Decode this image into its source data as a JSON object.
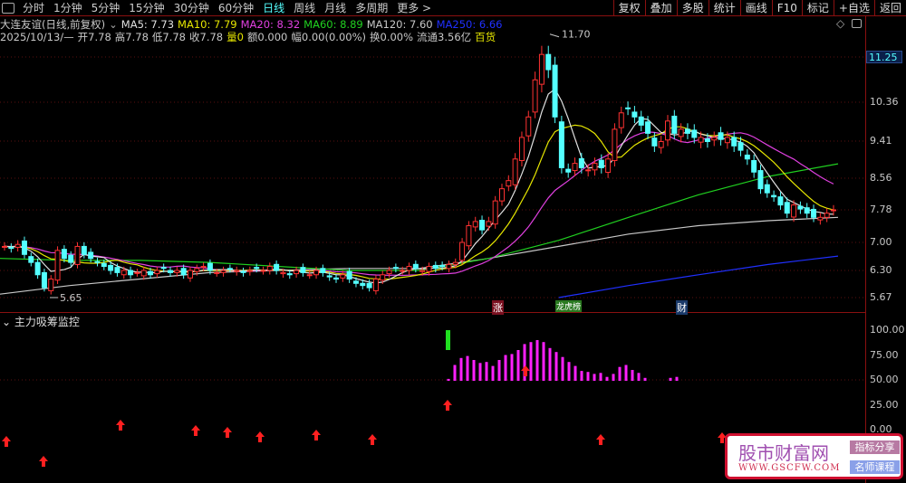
{
  "toolbar": {
    "periods": [
      "分时",
      "1分钟",
      "5分钟",
      "15分钟",
      "30分钟",
      "60分钟",
      "日线",
      "周线",
      "月线",
      "多周期",
      "更多 >"
    ],
    "active": "日线",
    "right_buttons": [
      "复权",
      "叠加",
      "多股",
      "统计",
      "画线",
      "F10",
      "标记",
      "+自选",
      "返回"
    ]
  },
  "stock": {
    "title": "大连友谊(日线,前复权)",
    "ma": [
      {
        "label": "MA5: 7.73",
        "color": "#e0e0e0"
      },
      {
        "label": "MA10: 7.79",
        "color": "#e6e600"
      },
      {
        "label": "MA20: 8.32",
        "color": "#e040e0"
      },
      {
        "label": "MA60: 8.89",
        "color": "#20d020"
      },
      {
        "label": "MA120: 7.60",
        "color": "#c8c8c8"
      },
      {
        "label": "MA250: 6.66",
        "color": "#2030ff"
      }
    ]
  },
  "quote": {
    "date": "2025/10/13/—",
    "open": "开7.78",
    "high": "高7.78",
    "low": "低7.78",
    "close": "收7.78",
    "vol": "量0",
    "amount": "额0.000",
    "range": "幅0.00(0.00%)",
    "turnover": "换0.00%",
    "float": "流通3.56亿",
    "sector": "百货"
  },
  "price_axis": {
    "labels": [
      "11.25",
      "10.36",
      "9.41",
      "8.56",
      "7.78",
      "7.00",
      "6.30",
      "5.67"
    ],
    "current": "11.25"
  },
  "annotations": {
    "high": "11.70",
    "low": "5.65"
  },
  "event_tags": [
    "涨",
    "龙虎榜",
    "财"
  ],
  "indicator": {
    "name": "主力吸筹监控",
    "axis": [
      "100.00",
      "75.00",
      "50.00",
      "25.00",
      "0.00"
    ],
    "bars": [
      51,
      65,
      72,
      74,
      70,
      67,
      68,
      64,
      70,
      75,
      76,
      80,
      86,
      88,
      90,
      88,
      82,
      78,
      73,
      68,
      64,
      59,
      58,
      56,
      57,
      53,
      56,
      63,
      65,
      60,
      57,
      52,
      null,
      null,
      null,
      52,
      53
    ],
    "signal_bar": [
      80,
      100
    ]
  },
  "chart_data": {
    "type": "candlestick",
    "closes": [
      6.9,
      6.85,
      6.95,
      6.7,
      6.5,
      6.2,
      5.9,
      6.1,
      6.8,
      6.6,
      6.5,
      6.9,
      6.7,
      6.6,
      6.5,
      6.4,
      6.3,
      6.25,
      6.3,
      6.2,
      6.25,
      6.3,
      6.2,
      6.3,
      6.35,
      6.25,
      6.3,
      6.2,
      6.3,
      6.35,
      6.4,
      6.3,
      6.25,
      6.3,
      6.35,
      6.3,
      6.25,
      6.3,
      6.35,
      6.3,
      6.4,
      6.3,
      6.25,
      6.2,
      6.3,
      6.25,
      6.2,
      6.3,
      6.25,
      6.15,
      6.1,
      6.2,
      6.1,
      6.0,
      5.95,
      5.9,
      6.1,
      6.2,
      6.3,
      6.35,
      6.3,
      6.4,
      6.35,
      6.3,
      6.4,
      6.35,
      6.4,
      6.45,
      6.5,
      7.0,
      7.4,
      7.5,
      7.3,
      7.5,
      8.0,
      8.3,
      8.5,
      9.0,
      9.5,
      10.0,
      10.8,
      11.3,
      11.0,
      10.0,
      8.8,
      8.7,
      8.9,
      8.8,
      8.75,
      8.9,
      8.8,
      9.0,
      9.7,
      10.1,
      10.2,
      10.0,
      9.8,
      9.6,
      9.3,
      9.4,
      9.9,
      9.6,
      9.7,
      9.6,
      9.5,
      9.5,
      9.4,
      9.5,
      9.45,
      9.5,
      9.3,
      9.2,
      9.0,
      8.7,
      8.3,
      8.2,
      8.1,
      7.9,
      7.7,
      7.9,
      7.8,
      7.7,
      7.6,
      7.6,
      7.7,
      7.78
    ],
    "ma60": [
      6.6,
      6.55,
      6.55,
      6.5,
      6.4,
      6.3,
      6.3,
      6.6,
      7.05,
      7.6,
      8.15,
      8.6,
      8.89
    ],
    "ma120": [
      5.75,
      5.95,
      6.1,
      6.25,
      6.3,
      6.35,
      6.35,
      6.6,
      6.9,
      7.2,
      7.4,
      7.52,
      7.6
    ],
    "ma250": [
      null,
      null,
      null,
      null,
      null,
      null,
      null,
      null,
      5.67,
      5.95,
      6.2,
      6.45,
      6.66
    ]
  }
}
